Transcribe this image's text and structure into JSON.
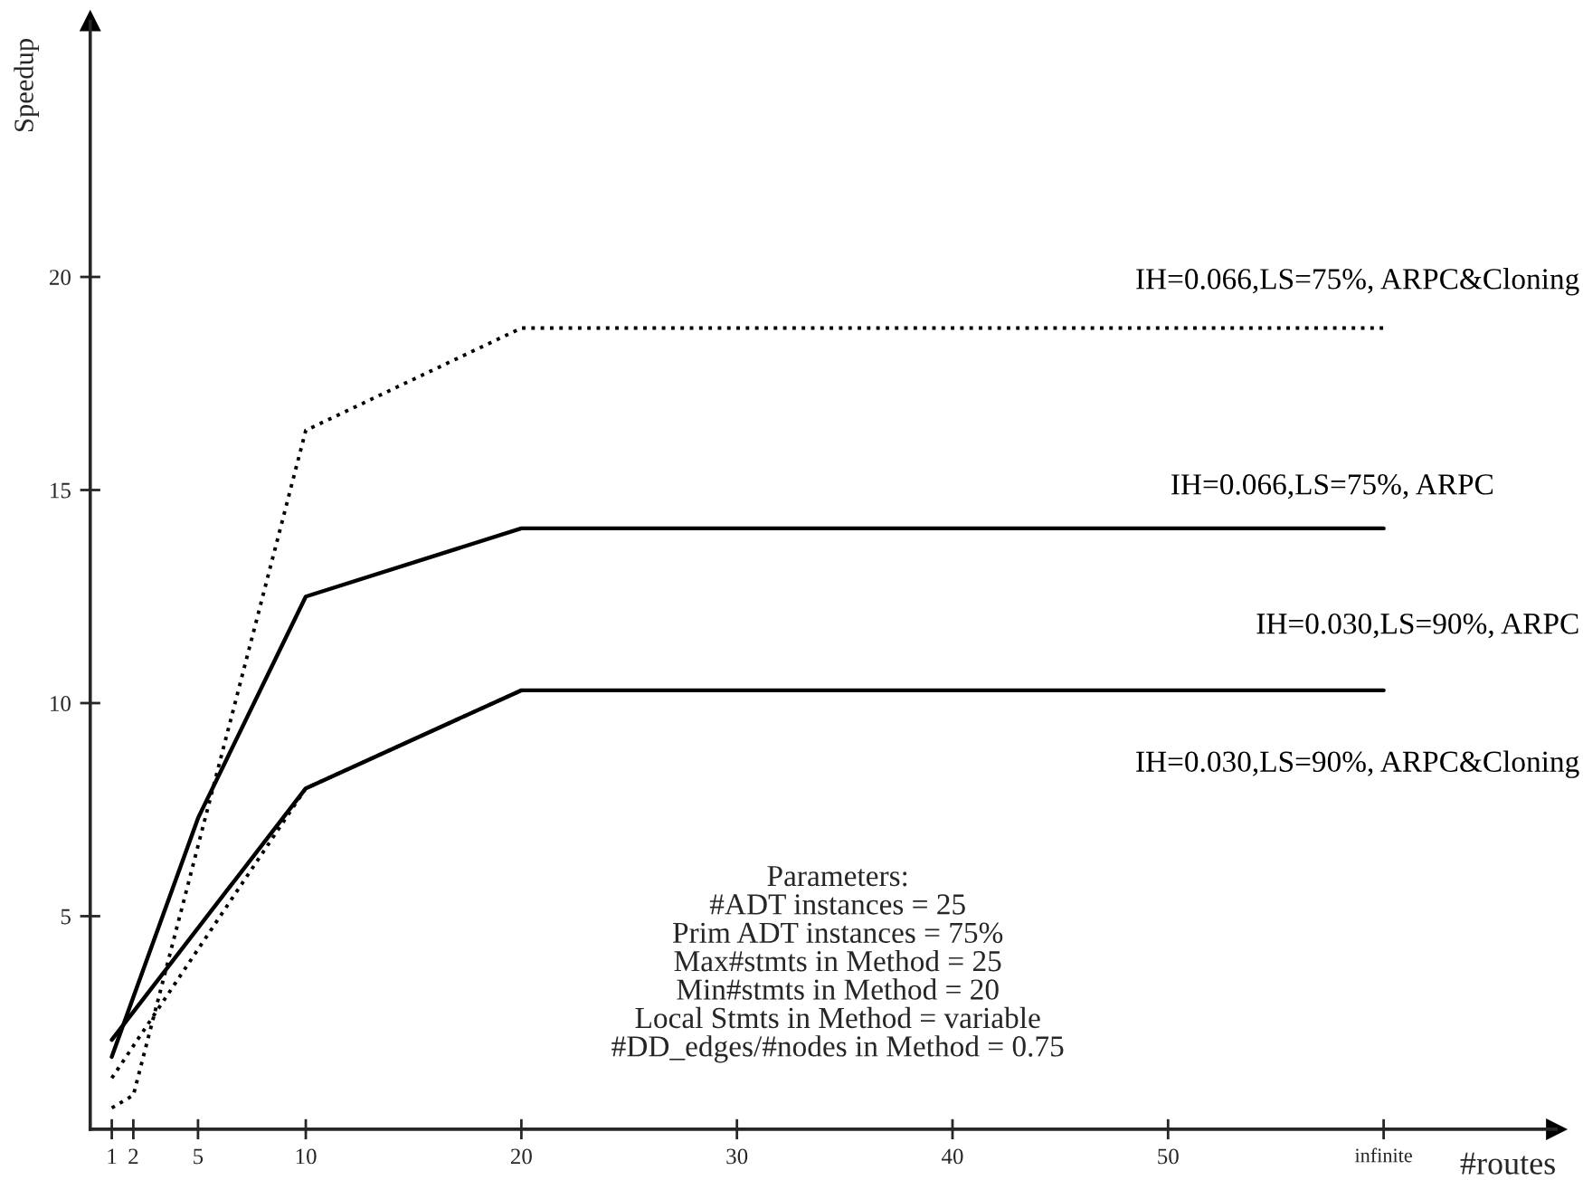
{
  "chart_data": {
    "type": "line",
    "xlabel": "#routes",
    "ylabel": "Speedup",
    "xlim": [
      0,
      68
    ],
    "ylim": [
      0,
      26
    ],
    "xticks": [
      1,
      2,
      5,
      10,
      20,
      30,
      40,
      50,
      {
        "value": 60,
        "label": "infinite"
      }
    ],
    "yticks": [
      5,
      10,
      15,
      20
    ],
    "grid": false,
    "legend": false,
    "marker": "none",
    "series": [
      {
        "name": "IH=0.066,LS=75%, ARPC&Cloning",
        "color": "#000000",
        "line_style": "dotted",
        "x": [
          1,
          2,
          10,
          20,
          60
        ],
        "values": [
          0.5,
          0.8,
          16.4,
          18.8,
          18.8
        ]
      },
      {
        "name": "IH=0.066,LS=75%, ARPC",
        "color": "#000000",
        "line_style": "solid",
        "x": [
          1,
          5,
          10,
          20,
          60
        ],
        "values": [
          1.7,
          7.3,
          12.5,
          14.1,
          14.1
        ]
      },
      {
        "name": "IH=0.030,LS=90%, ARPC",
        "color": "#000000",
        "line_style": "solid",
        "x": [
          1,
          10,
          20,
          60
        ],
        "values": [
          2.1,
          8.0,
          10.3,
          10.3
        ]
      },
      {
        "name": "IH=0.030,LS=90%, ARPC&Cloning",
        "color": "#000000",
        "line_style": "dotted",
        "x": [
          1,
          10,
          20,
          60
        ],
        "values": [
          1.2,
          8.0,
          10.3,
          10.3
        ]
      }
    ],
    "annotations": [
      "Parameters:\n#ADT instances = 25\nPrim ADT instances = 75%\nMax#stmts in Method = 25\nMin#stmts in Method = 20\nLocal Stmts in Method = variable\n#DD_edges/#nodes in Method = 0.75"
    ]
  }
}
